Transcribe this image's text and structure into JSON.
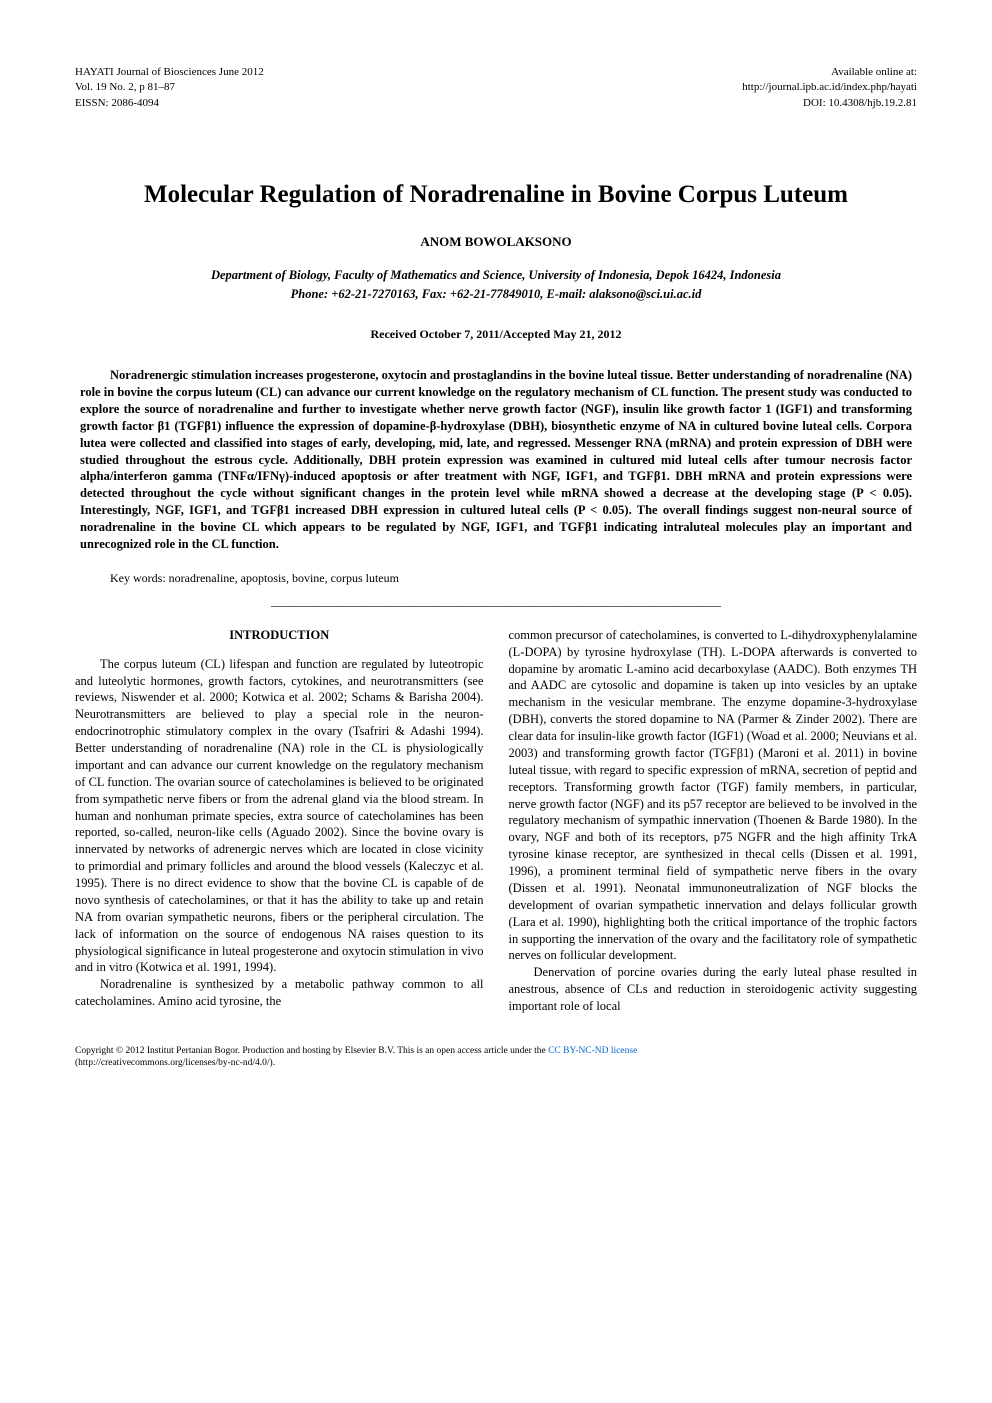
{
  "header": {
    "left": {
      "journal": "HAYATI Journal of Biosciences June 2012",
      "volume": "Vol. 19 No. 2, p 81–87",
      "eissn": "EISSN: 2086-4094"
    },
    "right": {
      "available": "Available online at:",
      "url": "http://journal.ipb.ac.id/index.php/hayati",
      "doi": "DOI: 10.4308/hjb.19.2.81"
    }
  },
  "title": "Molecular Regulation of Noradrenaline in Bovine Corpus Luteum",
  "author": "ANOM BOWOLAKSONO",
  "affiliation": "Department of Biology, Faculty of Mathematics and Science, University of Indonesia, Depok 16424, Indonesia",
  "contact": "Phone: +62-21-7270163, Fax: +62-21-77849010, E-mail: alaksono@sci.ui.ac.id",
  "dates": "Received October 7, 2011/Accepted May 21, 2012",
  "abstract": "Noradrenergic stimulation increases progesterone, oxytocin and prostaglandins in the bovine luteal tissue. Better understanding of noradrenaline (NA) role in bovine the corpus luteum (CL) can advance our current knowledge on the regulatory mechanism of CL function. The present study was conducted to explore the source of noradrenaline and further to investigate whether nerve growth factor (NGF), insulin like growth factor 1 (IGF1) and transforming growth factor β1 (TGFβ1) influence the expression of dopamine-β-hydroxylase (DBH), biosynthetic enzyme of NA in cultured bovine luteal cells. Corpora lutea were collected and classified into stages of early, developing, mid, late, and regressed. Messenger RNA (mRNA) and protein expression of DBH were studied throughout the estrous cycle. Additionally, DBH protein expression was examined in cultured mid luteal cells after tumour necrosis factor alpha/interferon gamma (TNFα/IFNγ)-induced apoptosis or after treatment with NGF, IGF1, and TGFβ1. DBH mRNA and protein expressions were detected throughout the cycle without significant changes in the protein level while mRNA showed a decrease at the developing stage (P < 0.05). Interestingly, NGF, IGF1, and TGFβ1 increased DBH expression in cultured luteal cells (P < 0.05). The overall findings suggest non-neural source of noradrenaline in the bovine CL which appears to be regulated by NGF, IGF1, and TGFβ1 indicating intraluteal molecules play an important and unrecognized role in the CL function.",
  "keywords": "Key words: noradrenaline, apoptosis, bovine, corpus luteum",
  "separator": "___________________________________________________________________________",
  "section_heading": "INTRODUCTION",
  "body": {
    "left": {
      "p1": "The corpus luteum (CL) lifespan and function are regulated by luteotropic and luteolytic hormones, growth factors, cytokines, and neurotransmitters (see reviews, Niswender et al. 2000; Kotwica et al. 2002; Schams & Barisha 2004). Neurotransmitters are believed to play a special role in the neuron-endocrinotrophic stimulatory complex in the ovary (Tsafriri & Adashi 1994). Better understanding of noradrenaline (NA) role in the CL is physiologically important and can advance our current knowledge on the regulatory mechanism of CL function. The ovarian source of catecholamines is believed to be originated from sympathetic nerve fibers or from the adrenal gland via the blood stream. In human and nonhuman primate species, extra source of catecholamines has been reported, so-called, neuron-like cells (Aguado 2002). Since the bovine ovary is innervated by networks of adrenergic nerves which are located in close vicinity to primordial and primary follicles and around the blood vessels (Kaleczyc et al. 1995). There is no direct evidence to show that the bovine CL is capable of de novo synthesis of catecholamines, or that it has the ability to take up and retain NA from ovarian sympathetic neurons, fibers or the peripheral circulation. The lack of information on the source of endogenous NA raises question to its physiological significance in luteal progesterone and oxytocin stimulation in vivo and in vitro (Kotwica et al. 1991, 1994).",
      "p2": "Noradrenaline is synthesized by a metabolic pathway common to all catecholamines. Amino acid tyrosine, the"
    },
    "right": {
      "p1": "common precursor of catecholamines, is converted to L-dihydroxyphenylalamine (L-DOPA) by tyrosine hydroxylase (TH). L-DOPA afterwards is converted to dopamine by aromatic L-amino acid decarboxylase (AADC). Both enzymes TH and AADC are cytosolic and dopamine is taken up into vesicles by an uptake mechanism in the vesicular membrane. The enzyme dopamine-3-hydroxylase (DBH), converts the stored dopamine to NA (Parmer & Zinder 2002). There are clear data for insulin-like growth factor (IGF1) (Woad et al. 2000; Neuvians et al. 2003) and transforming growth factor (TGFβ1) (Maroni et al. 2011) in bovine luteal tissue, with regard to specific expression of mRNA, secretion of peptid and receptors. Transforming growth factor (TGF) family members, in particular, nerve growth factor (NGF) and its p57 receptor are believed to be involved in the regulatory mechanism of sympathic innervation (Thoenen & Barde 1980). In the ovary, NGF and both of its receptors, p75 NGFR and the high affinity TrkA tyrosine kinase receptor, are synthesized in thecal cells (Dissen et al. 1991, 1996), a prominent terminal field of sympathetic nerve fibers in the ovary (Dissen et al. 1991). Neonatal immunoneutralization of NGF blocks the development of ovarian sympathetic innervation and delays follicular growth (Lara et al. 1990), highlighting both the critical importance of the trophic factors in supporting the innervation of the ovary and the facilitatory role of sympathetic nerves on follicular development.",
      "p2": "Denervation of porcine ovaries during the early luteal phase resulted in anestrous, absence of CLs and reduction in steroidogenic activity suggesting important role of local"
    }
  },
  "copyright": {
    "line1_a": "Copyright © 2012 Institut Pertanian Bogor. Production and hosting by Elsevier B.V. This is an open access article under the ",
    "license": "CC BY-NC-ND license",
    "line2": "(http://creativecommons.org/licenses/by-nc-nd/4.0/)."
  }
}
